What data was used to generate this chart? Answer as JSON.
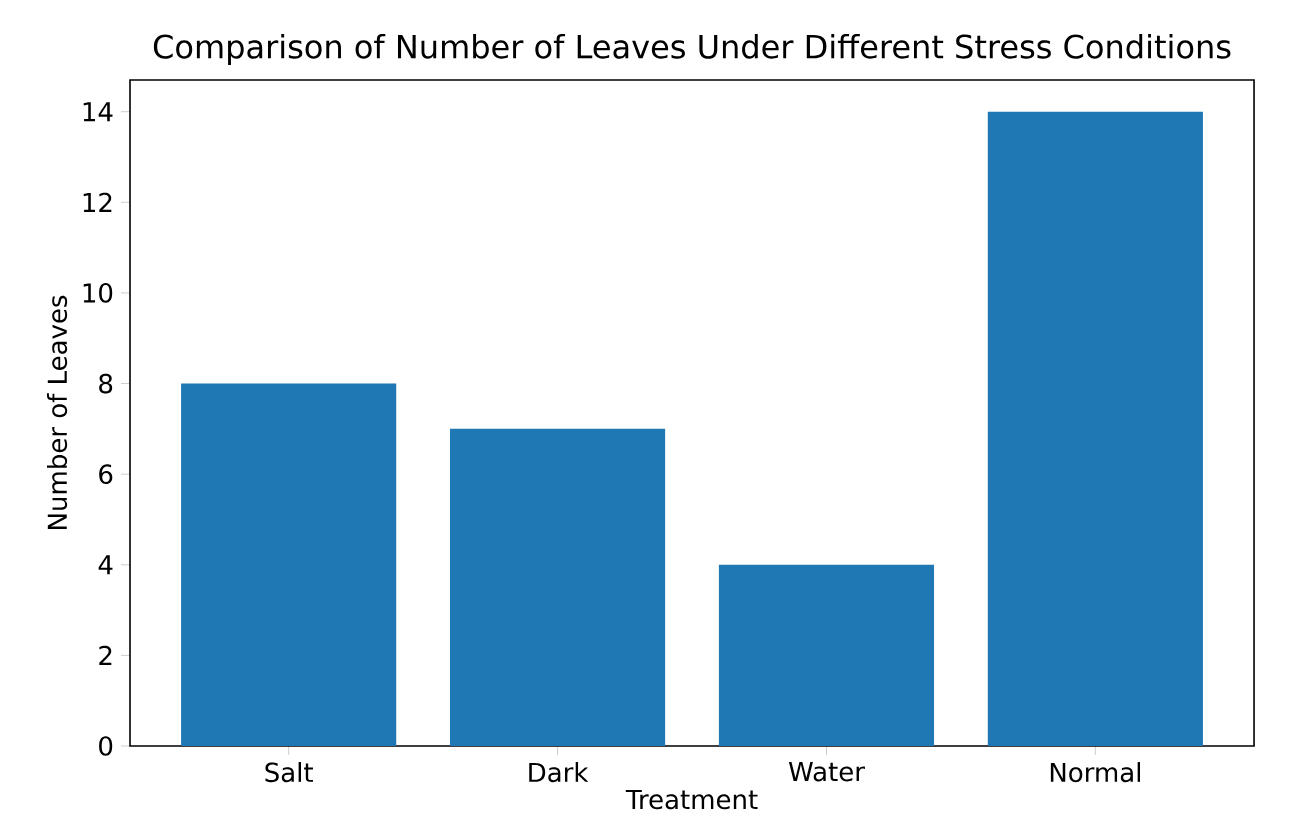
{
  "chart_data": {
    "type": "bar",
    "title": "Comparison of Number of Leaves Under Different Stress Conditions",
    "xlabel": "Treatment",
    "ylabel": "Number of Leaves",
    "categories": [
      "Salt",
      "Dark",
      "Water",
      "Normal"
    ],
    "values": [
      8,
      7,
      4,
      14
    ],
    "color": "#1f77b4",
    "ylim": [
      0,
      14.7
    ],
    "yticks": [
      0,
      2,
      4,
      6,
      8,
      10,
      12,
      14
    ],
    "grid": false
  }
}
